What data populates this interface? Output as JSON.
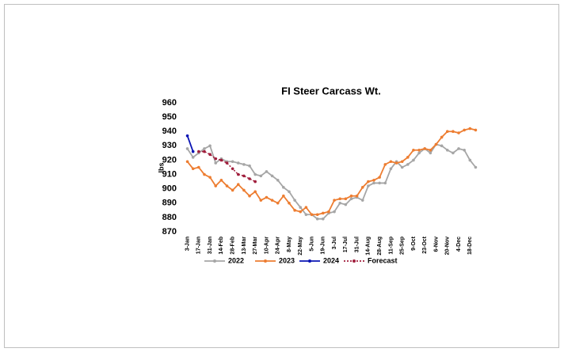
{
  "chart_data": {
    "type": "line",
    "title": "FI Steer Carcass Wt.",
    "y_label": "lbs",
    "categories": [
      "3-Jan",
      null,
      "17-Jan",
      null,
      "31-Jan",
      null,
      "14-Feb",
      null,
      "28-Feb",
      null,
      "13-Mar",
      null,
      "27-Mar",
      null,
      "10-Apr",
      null,
      "24-Apr",
      null,
      "8-May",
      null,
      "22-May",
      null,
      "5-Jun",
      null,
      "19-Jun",
      null,
      "3-Jul",
      null,
      "17-Jul",
      null,
      "31-Jul",
      null,
      "14-Aug",
      null,
      "28-Aug",
      null,
      "11-Sep",
      null,
      "25-Sep",
      null,
      "9-Oct",
      null,
      "23-Oct",
      null,
      "6-Nov",
      null,
      "20-Nov",
      null,
      "4-Dec",
      null,
      "18-Dec",
      null
    ],
    "series": [
      {
        "name": "2022",
        "color": "#a6a6a6",
        "dash": false,
        "values": [
          928,
          922,
          925,
          928,
          930,
          918,
          921,
          919,
          919,
          918,
          917,
          916,
          910,
          909,
          912,
          909,
          906,
          901,
          898,
          892,
          887,
          882,
          882,
          879,
          879,
          883,
          884,
          890,
          889,
          893,
          894,
          892,
          902,
          904,
          904,
          904,
          914,
          919,
          915,
          917,
          920,
          925,
          928,
          925,
          931,
          930,
          927,
          925,
          928,
          927,
          920,
          915
        ]
      },
      {
        "name": "2023",
        "color": "#ed7d31",
        "dash": false,
        "values": [
          919,
          914,
          915,
          910,
          908,
          902,
          906,
          902,
          899,
          903,
          899,
          895,
          898,
          892,
          894,
          892,
          890,
          895,
          890,
          885,
          884,
          887,
          882,
          882,
          883,
          884,
          892,
          893,
          893,
          895,
          895,
          901,
          905,
          906,
          908,
          917,
          919,
          918,
          919,
          922,
          927,
          927,
          928,
          927,
          931,
          936,
          940,
          940,
          939,
          941,
          942,
          941
        ]
      },
      {
        "name": "2024",
        "color": "#0a14b4",
        "dash": false,
        "values": [
          937,
          926,
          null,
          null,
          null,
          null,
          null,
          null,
          null,
          null,
          null,
          null,
          null,
          null,
          null,
          null,
          null,
          null,
          null,
          null,
          null,
          null,
          null,
          null,
          null,
          null,
          null,
          null,
          null,
          null,
          null,
          null,
          null,
          null,
          null,
          null,
          null,
          null,
          null,
          null,
          null,
          null,
          null,
          null,
          null,
          null,
          null,
          null,
          null,
          null,
          null,
          null
        ]
      },
      {
        "name": "Forecast",
        "color": "#a01e3c",
        "dash": true,
        "values": [
          null,
          null,
          926,
          926,
          924,
          921,
          920,
          918,
          914,
          910,
          909,
          907,
          905,
          null,
          null,
          null,
          null,
          null,
          null,
          null,
          null,
          null,
          null,
          null,
          null,
          null,
          null,
          null,
          null,
          null,
          null,
          null,
          null,
          null,
          null,
          null,
          null,
          null,
          null,
          null,
          null,
          null,
          null,
          null,
          null,
          null,
          null,
          null,
          null,
          null,
          null,
          null
        ]
      }
    ],
    "ylim": [
      870,
      960
    ],
    "yticks": [
      870,
      880,
      890,
      900,
      910,
      920,
      930,
      940,
      950,
      960
    ],
    "grid": false,
    "legend": "bottom"
  }
}
